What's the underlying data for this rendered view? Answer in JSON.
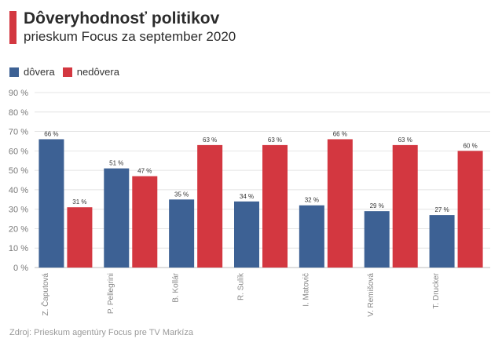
{
  "header": {
    "title": "Dôveryhodnosť politikov",
    "subtitle": "prieskum Focus za september 2020"
  },
  "footer": {
    "source": "Zdroj: Prieskum agentúry Focus pre TV Markíza"
  },
  "chart_data": {
    "type": "bar",
    "categories": [
      "Z. Čaputová",
      "P. Pellegrini",
      "B. Kollár",
      "R. Sulík",
      "I. Matovič",
      "V. Remišová",
      "T. Drucker"
    ],
    "series": [
      {
        "name": "dôvera",
        "color": "#3d6194",
        "values": [
          66,
          51,
          35,
          34,
          32,
          29,
          27
        ]
      },
      {
        "name": "nedôvera",
        "color": "#d33740",
        "values": [
          31,
          47,
          63,
          63,
          66,
          63,
          60
        ]
      }
    ],
    "ylim": [
      0,
      90
    ],
    "yticks": [
      0,
      10,
      20,
      30,
      40,
      50,
      60,
      70,
      80,
      90
    ],
    "tick_suffix": " %",
    "label_suffix": " %",
    "grid": true,
    "legend_position": "top-left"
  }
}
